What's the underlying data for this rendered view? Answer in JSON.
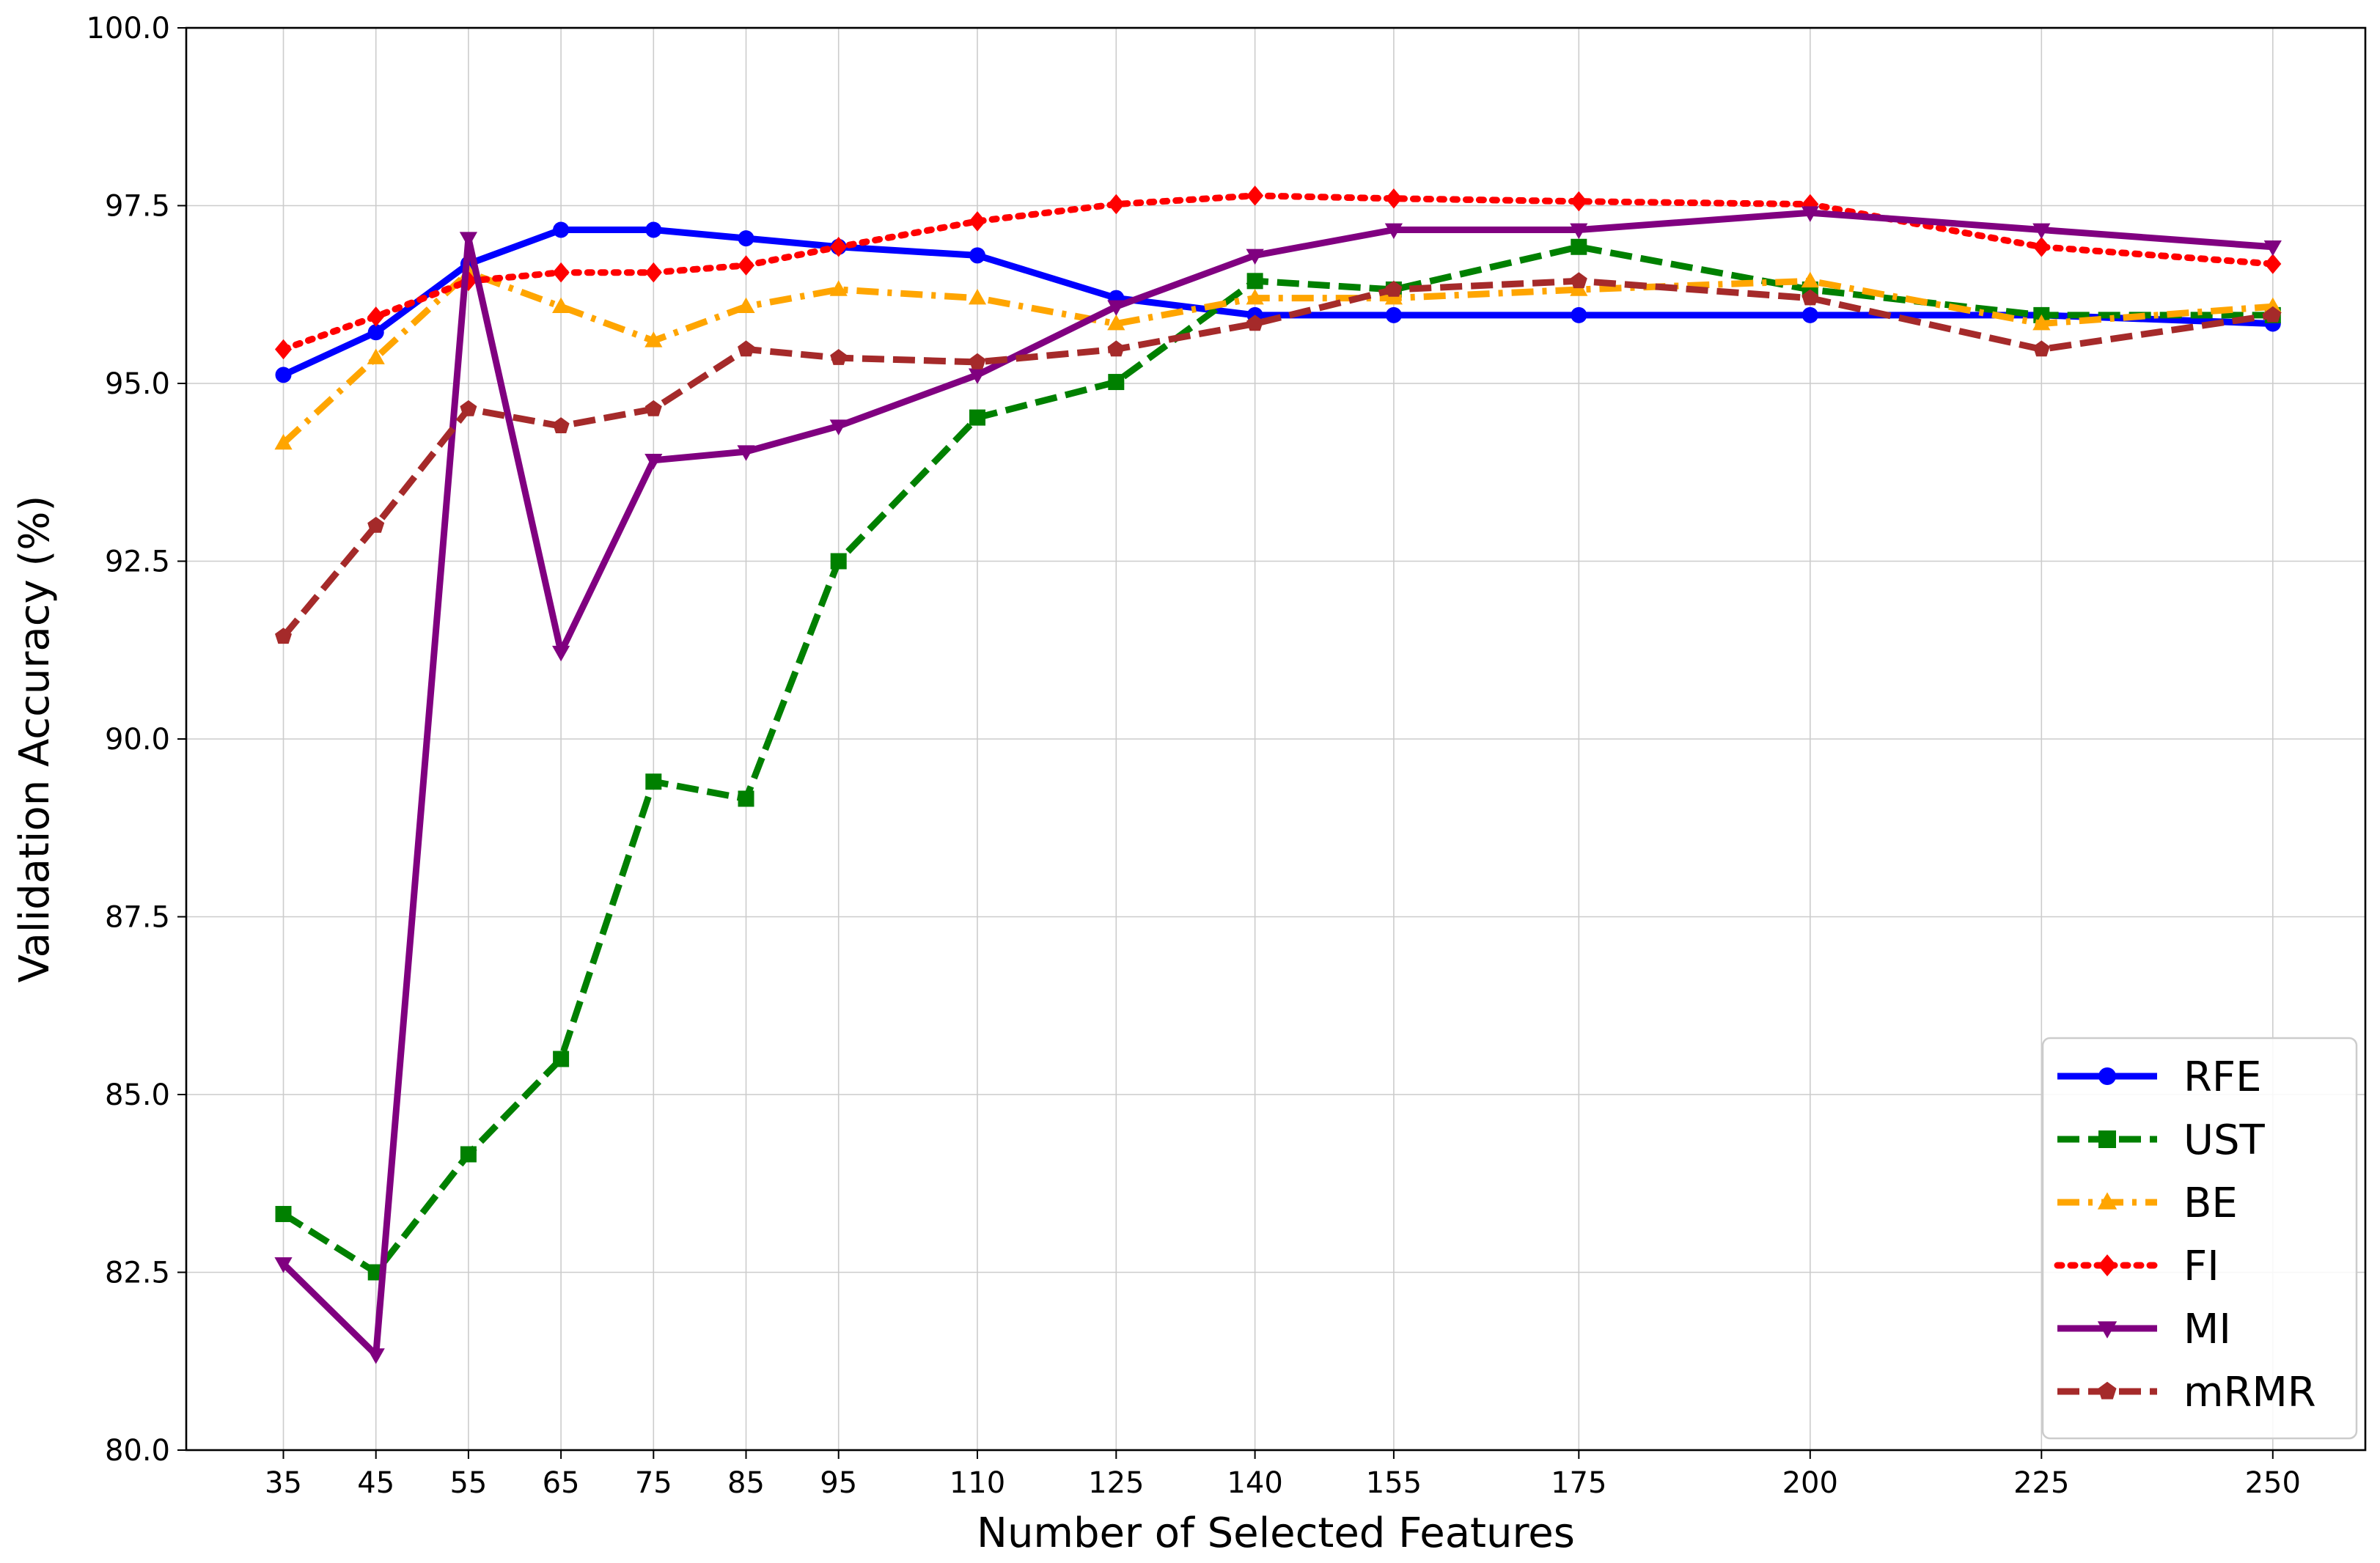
{
  "chart_data": {
    "type": "line",
    "title": "",
    "xlabel": "Number of Selected Features",
    "ylabel": "Validation Accuracy (%)",
    "x": [
      35,
      45,
      55,
      65,
      75,
      85,
      95,
      110,
      125,
      140,
      155,
      175,
      200,
      225,
      250
    ],
    "x_tick_labels": [
      "35",
      "45",
      "55",
      "65",
      "75",
      "85",
      "95",
      "110",
      "125",
      "140",
      "155",
      "175",
      "200",
      "225",
      "250"
    ],
    "xlim": [
      24.5,
      260
    ],
    "ylim": [
      80.0,
      100.0
    ],
    "y_ticks": [
      80.0,
      82.5,
      85.0,
      87.5,
      90.0,
      92.5,
      95.0,
      97.5,
      100.0
    ],
    "y_tick_labels": [
      "80.0",
      "82.5",
      "85.0",
      "87.5",
      "90.0",
      "92.5",
      "95.0",
      "97.5",
      "100.0"
    ],
    "grid": true,
    "legend_position": "bottom-right",
    "series": [
      {
        "name": "RFE",
        "color": "#0000ff",
        "linestyle": "solid",
        "marker": "circle",
        "values": [
          95.12,
          95.72,
          96.68,
          97.16,
          97.16,
          97.04,
          96.92,
          96.8,
          96.2,
          95.96,
          95.96,
          95.96,
          95.96,
          95.96,
          95.84
        ]
      },
      {
        "name": "UST",
        "color": "#008000",
        "linestyle": "dashed",
        "marker": "square",
        "values": [
          83.32,
          82.5,
          84.16,
          85.5,
          89.4,
          89.16,
          92.5,
          94.52,
          95.02,
          96.44,
          96.32,
          96.92,
          96.32,
          95.96,
          95.96
        ]
      },
      {
        "name": "BE",
        "color": "#ffa500",
        "linestyle": "dashdot",
        "marker": "triangle-up",
        "values": [
          94.16,
          95.36,
          96.56,
          96.08,
          95.6,
          96.08,
          96.32,
          96.2,
          95.84,
          96.2,
          96.2,
          96.32,
          96.44,
          95.84,
          96.08
        ]
      },
      {
        "name": "FI",
        "color": "#ff0000",
        "linestyle": "dotted",
        "marker": "diamond",
        "values": [
          95.48,
          95.94,
          96.44,
          96.56,
          96.56,
          96.66,
          96.92,
          97.28,
          97.52,
          97.64,
          97.6,
          97.56,
          97.52,
          96.92,
          96.68
        ]
      },
      {
        "name": "MI",
        "color": "#800080",
        "linestyle": "solid",
        "marker": "triangle-down",
        "values": [
          82.62,
          81.34,
          97.04,
          91.22,
          93.92,
          94.04,
          94.4,
          95.12,
          96.08,
          96.8,
          97.16,
          97.16,
          97.4,
          97.16,
          96.92
        ]
      },
      {
        "name": "mRMR",
        "color": "#a52a2a",
        "linestyle": "dashed",
        "marker": "pentagon",
        "values": [
          91.44,
          93.0,
          94.64,
          94.4,
          94.64,
          95.48,
          95.36,
          95.3,
          95.48,
          95.84,
          96.32,
          96.44,
          96.2,
          95.48,
          95.96
        ]
      }
    ]
  }
}
